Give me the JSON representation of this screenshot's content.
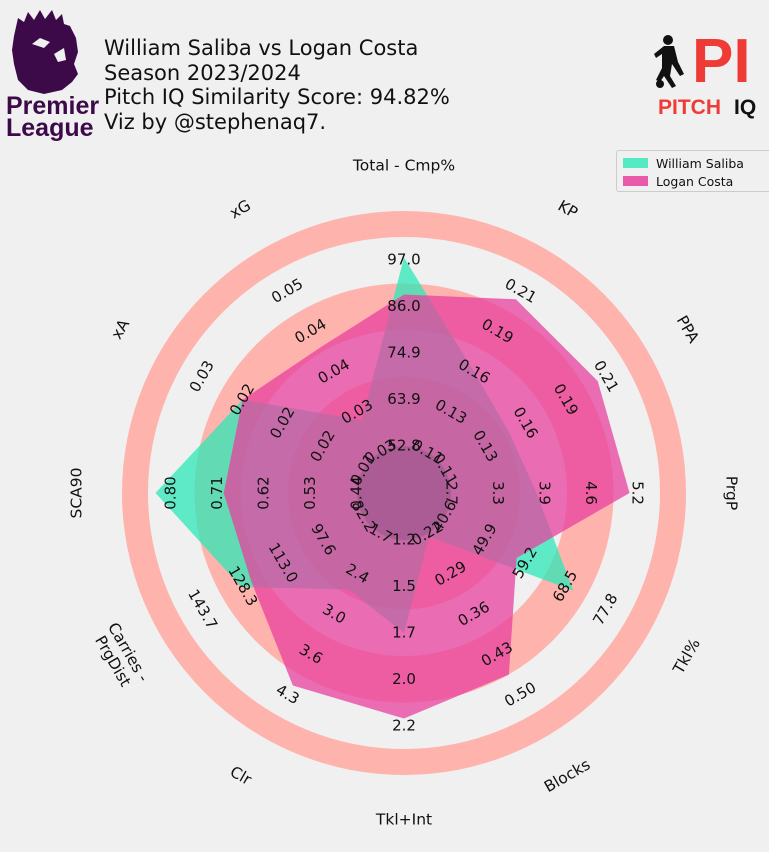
{
  "header": {
    "line1": "William Saliba vs Logan Costa",
    "line2": "Season 2023/2024",
    "line3": "Pitch IQ Similarity Score: 94.82%",
    "line4": "Viz by @stephenaq7."
  },
  "logos": {
    "premier_league_line1": "Premier",
    "premier_league_line2": "League",
    "pitch_iq_mark": "PI",
    "pitch_iq_word1": "PITCH",
    "pitch_iq_word2": "IQ"
  },
  "colors": {
    "background": "#f0f0f0",
    "saliba": "#2ee8b8",
    "costa": "#e8409f",
    "ring_outer": "#ffb3ad",
    "ring_inner": "#a75b92",
    "pl_purple": "#3d0a49",
    "pitchiq_red": "#ef3b36"
  },
  "chart_data": {
    "type": "radar",
    "axes": [
      {
        "label": "Total - Cmp%",
        "ticks": [
          "52.8",
          "63.9",
          "74.9",
          "86.0",
          "97.0"
        ]
      },
      {
        "label": "KP",
        "ticks": [
          "0.11",
          "0.13",
          "0.16",
          "0.19",
          "0.21"
        ]
      },
      {
        "label": "PPA",
        "ticks": [
          "0.11",
          "0.13",
          "0.16",
          "0.19",
          "0.21"
        ]
      },
      {
        "label": "PrgP",
        "ticks": [
          "2.7",
          "3.3",
          "3.9",
          "4.6",
          "5.2"
        ]
      },
      {
        "label": "Tkl%",
        "ticks": [
          "40.6",
          "49.9",
          "59.2",
          "68.5",
          "77.8"
        ]
      },
      {
        "label": "Blocks",
        "ticks": [
          "0.22",
          "0.29",
          "0.36",
          "0.43",
          "0.50"
        ]
      },
      {
        "label": "Tkl+Int",
        "ticks": [
          "1.2",
          "1.5",
          "1.7",
          "2.0",
          "2.2"
        ]
      },
      {
        "label": "Clr",
        "ticks": [
          "1.7",
          "2.4",
          "3.0",
          "3.6",
          "4.3"
        ]
      },
      {
        "label": "Carries -\nPrgDist",
        "ticks": [
          "82.2",
          "97.6",
          "113.0",
          "128.3",
          "143.7"
        ]
      },
      {
        "label": "SCA90",
        "ticks": [
          "0.44",
          "0.53",
          "0.62",
          "0.71",
          "0.80"
        ]
      },
      {
        "label": "xA",
        "ticks": [
          "0.01",
          "0.02",
          "0.02",
          "0.02",
          "0.03"
        ]
      },
      {
        "label": "xG",
        "ticks": [
          "0.03",
          "0.03",
          "0.04",
          "0.04",
          "0.05"
        ]
      }
    ],
    "series": [
      {
        "name": "William Saliba",
        "color": "#2ee8b8",
        "values": [
          97.6,
          0.16,
          0.15,
          3.85,
          70.3,
          0.225,
          1.7,
          2.6,
          128.8,
          0.83,
          0.025,
          0.034
        ]
      },
      {
        "name": "Logan Costa",
        "color": "#e8409f",
        "values": [
          88.8,
          0.205,
          0.205,
          5.1,
          57.2,
          0.465,
          2.16,
          4.15,
          125.0,
          0.698,
          0.025,
          0.043
        ]
      }
    ],
    "legend_position": "top-right",
    "grid": true
  }
}
